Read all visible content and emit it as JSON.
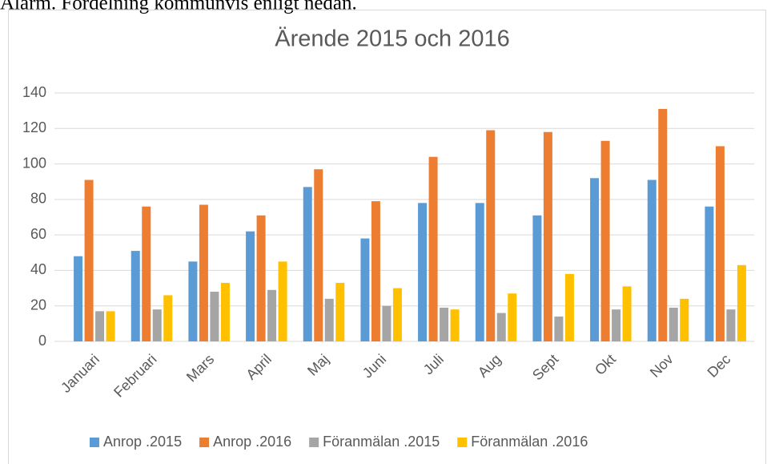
{
  "page_text": "Alarm. Fördelning kommunvis enligt nedan.",
  "chart_data": {
    "type": "bar",
    "title": "Ärende 2015 och 2016",
    "categories": [
      "Januari",
      "Februari",
      "Mars",
      "April",
      "Maj",
      "Juni",
      "Juli",
      "Aug",
      "Sept",
      "Okt",
      "Nov",
      "Dec"
    ],
    "series": [
      {
        "name": "Anrop .2015",
        "color": "#5b9bd5",
        "values": [
          48,
          51,
          45,
          62,
          87,
          58,
          78,
          78,
          71,
          92,
          91,
          76
        ]
      },
      {
        "name": "Anrop .2016",
        "color": "#ed7d31",
        "values": [
          91,
          76,
          77,
          71,
          97,
          79,
          104,
          119,
          118,
          113,
          131,
          110
        ]
      },
      {
        "name": "Föranmälan .2015",
        "color": "#a5a5a5",
        "values": [
          17,
          18,
          28,
          29,
          24,
          20,
          19,
          16,
          14,
          18,
          19,
          18
        ]
      },
      {
        "name": "Föranmälan .2016",
        "color": "#ffc000",
        "values": [
          17,
          26,
          33,
          45,
          33,
          30,
          18,
          27,
          38,
          31,
          24,
          43
        ]
      }
    ],
    "ylim": [
      0,
      140
    ],
    "yticks": [
      0,
      20,
      40,
      60,
      80,
      100,
      120,
      140
    ],
    "grid": true,
    "legend": "bottom"
  }
}
